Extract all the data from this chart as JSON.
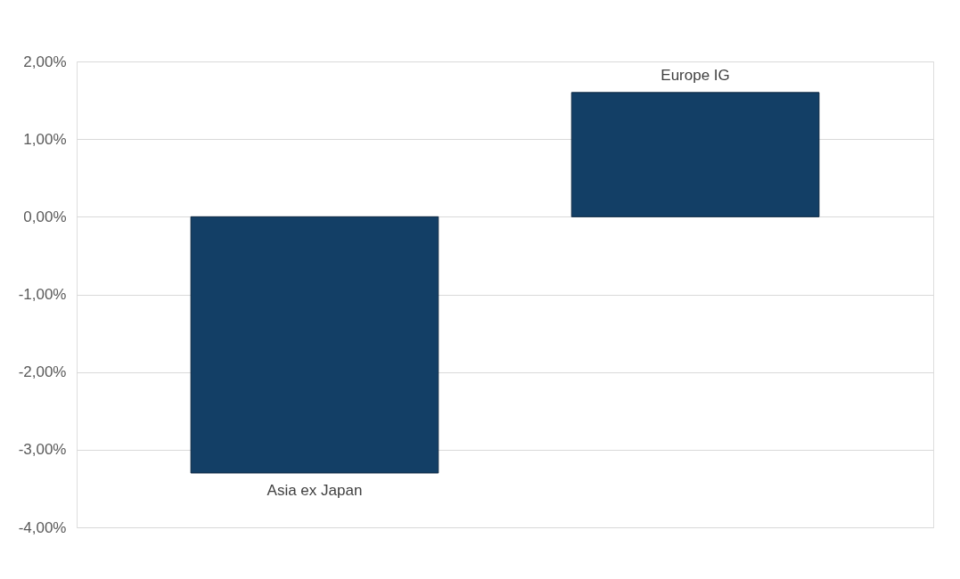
{
  "chart_data": {
    "type": "bar",
    "categories": [
      "Asia ex Japan",
      "Europe IG"
    ],
    "values": [
      -3.3,
      1.6
    ],
    "color": "#133f66",
    "ylim": [
      -4,
      2
    ],
    "yticks": [
      {
        "value": -4,
        "label": "-4,00%"
      },
      {
        "value": -3,
        "label": "-3,00%"
      },
      {
        "value": -2,
        "label": "-2,00%"
      },
      {
        "value": -1,
        "label": "-1,00%"
      },
      {
        "value": 0,
        "label": "0,00%"
      },
      {
        "value": 1,
        "label": "1,00%"
      },
      {
        "value": 2,
        "label": "2,00%"
      }
    ],
    "grid": "y",
    "tick_labels": "y"
  }
}
